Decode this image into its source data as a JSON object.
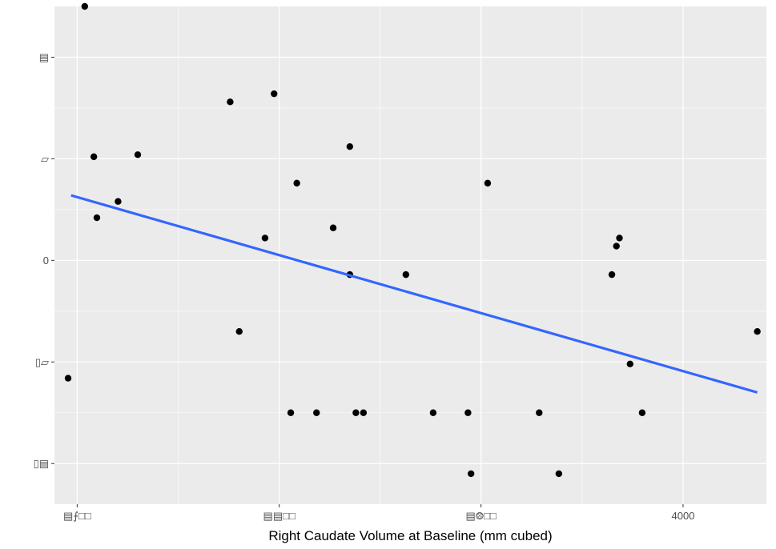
{
  "chart_data": {
    "type": "scatter",
    "title": "",
    "xlabel": "Right Caudate Volume at Baseline (mm cubed)",
    "ylabel": "",
    "xlim": [
      1925,
      4275
    ],
    "ylim": [
      -1.2,
      1.25
    ],
    "x_ticks": [
      {
        "value": 2000,
        "label": "▤⨍□□"
      },
      {
        "value": 2667,
        "label": "▤▤□□"
      },
      {
        "value": 3333,
        "label": "▤⨷□□"
      },
      {
        "value": 4000,
        "label": "4000"
      }
    ],
    "x_minor_ticks": [
      2333,
      3000,
      3667
    ],
    "y_ticks": [
      {
        "value": -1.0,
        "label": "▯▤"
      },
      {
        "value": -0.5,
        "label": "▯▱"
      },
      {
        "value": 0.0,
        "label": "0"
      },
      {
        "value": 0.5,
        "label": "▱"
      },
      {
        "value": 1.0,
        "label": "▤"
      }
    ],
    "y_minor_ticks": [
      -0.75,
      -0.25,
      0.25,
      0.75
    ],
    "points": [
      {
        "x": 1970,
        "y": -0.58
      },
      {
        "x": 2025,
        "y": 1.25
      },
      {
        "x": 2055,
        "y": 0.51
      },
      {
        "x": 2065,
        "y": 0.21
      },
      {
        "x": 2135,
        "y": 0.29
      },
      {
        "x": 2200,
        "y": 0.52
      },
      {
        "x": 2505,
        "y": 0.78
      },
      {
        "x": 2535,
        "y": -0.35
      },
      {
        "x": 2620,
        "y": 0.11
      },
      {
        "x": 2650,
        "y": 0.82
      },
      {
        "x": 2705,
        "y": -0.75
      },
      {
        "x": 2725,
        "y": 0.38
      },
      {
        "x": 2790,
        "y": -0.75
      },
      {
        "x": 2845,
        "y": 0.16
      },
      {
        "x": 2900,
        "y": -0.07
      },
      {
        "x": 2900,
        "y": 0.56
      },
      {
        "x": 2920,
        "y": -0.75
      },
      {
        "x": 2945,
        "y": -0.75
      },
      {
        "x": 3085,
        "y": -0.07
      },
      {
        "x": 3175,
        "y": -0.75
      },
      {
        "x": 3290,
        "y": -0.75
      },
      {
        "x": 3300,
        "y": -1.05
      },
      {
        "x": 3355,
        "y": 0.38
      },
      {
        "x": 3525,
        "y": -0.75
      },
      {
        "x": 3590,
        "y": -1.05
      },
      {
        "x": 3765,
        "y": -0.07
      },
      {
        "x": 3780,
        "y": 0.07
      },
      {
        "x": 3790,
        "y": 0.11
      },
      {
        "x": 3825,
        "y": -0.51
      },
      {
        "x": 3865,
        "y": -0.75
      },
      {
        "x": 4245,
        "y": -0.35
      }
    ],
    "trend_line": {
      "x": [
        1980,
        4245
      ],
      "y": [
        0.32,
        -0.65
      ],
      "color": "#3366FF"
    },
    "point_color": "#000000",
    "panel_background": "#EBEBEB",
    "grid_color": "#FFFFFF",
    "grid": true,
    "legend": "none"
  }
}
